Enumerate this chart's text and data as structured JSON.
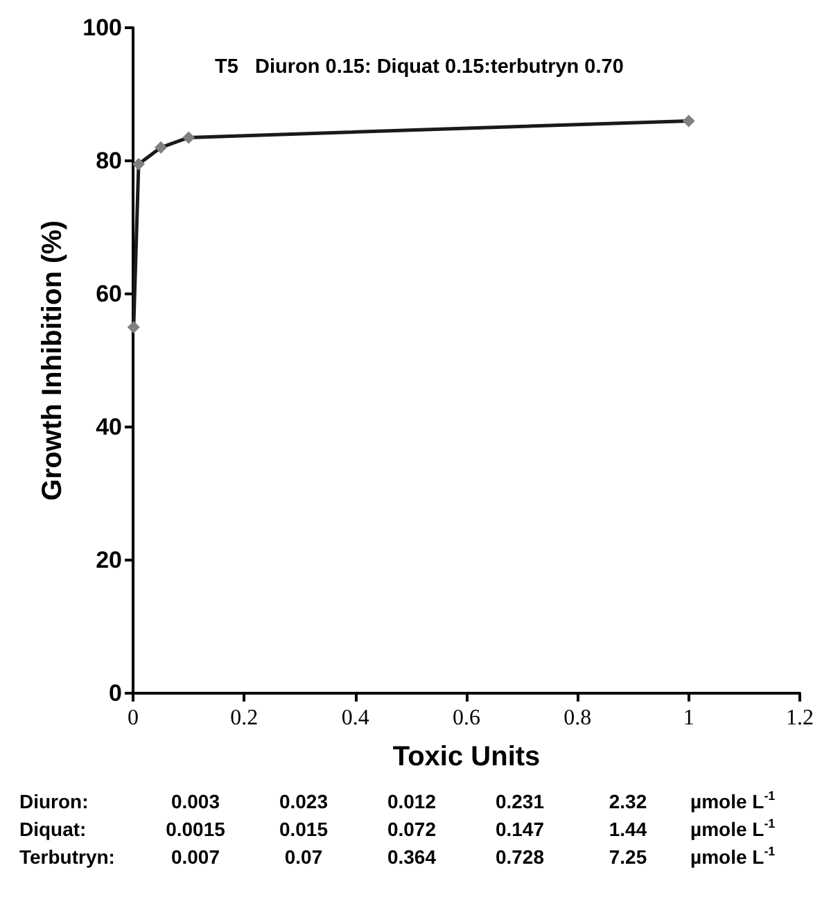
{
  "chart_data": {
    "type": "line",
    "title": "T5   Diuron 0.15: Diquat 0.15:terbutryn 0.70",
    "xlabel": "Toxic Units",
    "ylabel": "Growth Inhibition (%)",
    "x": [
      0.001,
      0.01,
      0.05,
      0.1,
      1
    ],
    "series": [
      {
        "color": "#1a1a1a",
        "values": [
          55,
          79.5,
          82,
          83.5,
          86
        ]
      }
    ],
    "xlim": [
      0,
      1.2
    ],
    "xticks": [
      0,
      0.2,
      0.4,
      0.6,
      0.8,
      1,
      1.2
    ],
    "ylim": [
      0,
      100
    ],
    "yticks": [
      0,
      20,
      40,
      60,
      80,
      100
    ],
    "grid": false,
    "marker": "diamond",
    "line_style": "solid",
    "annotations": [
      "Diuron: 0.003 0.023 0.012 0.231 2.32 µmole L$^{-1}$",
      "Diquat: 0.0015 0.015 0.072 0.147 1.44 µmole L$^{-1}$",
      "Terbutryn: 0.007 0.07 0.364 0.728 7.25 µmole L$^{-1}$"
    ]
  }
}
